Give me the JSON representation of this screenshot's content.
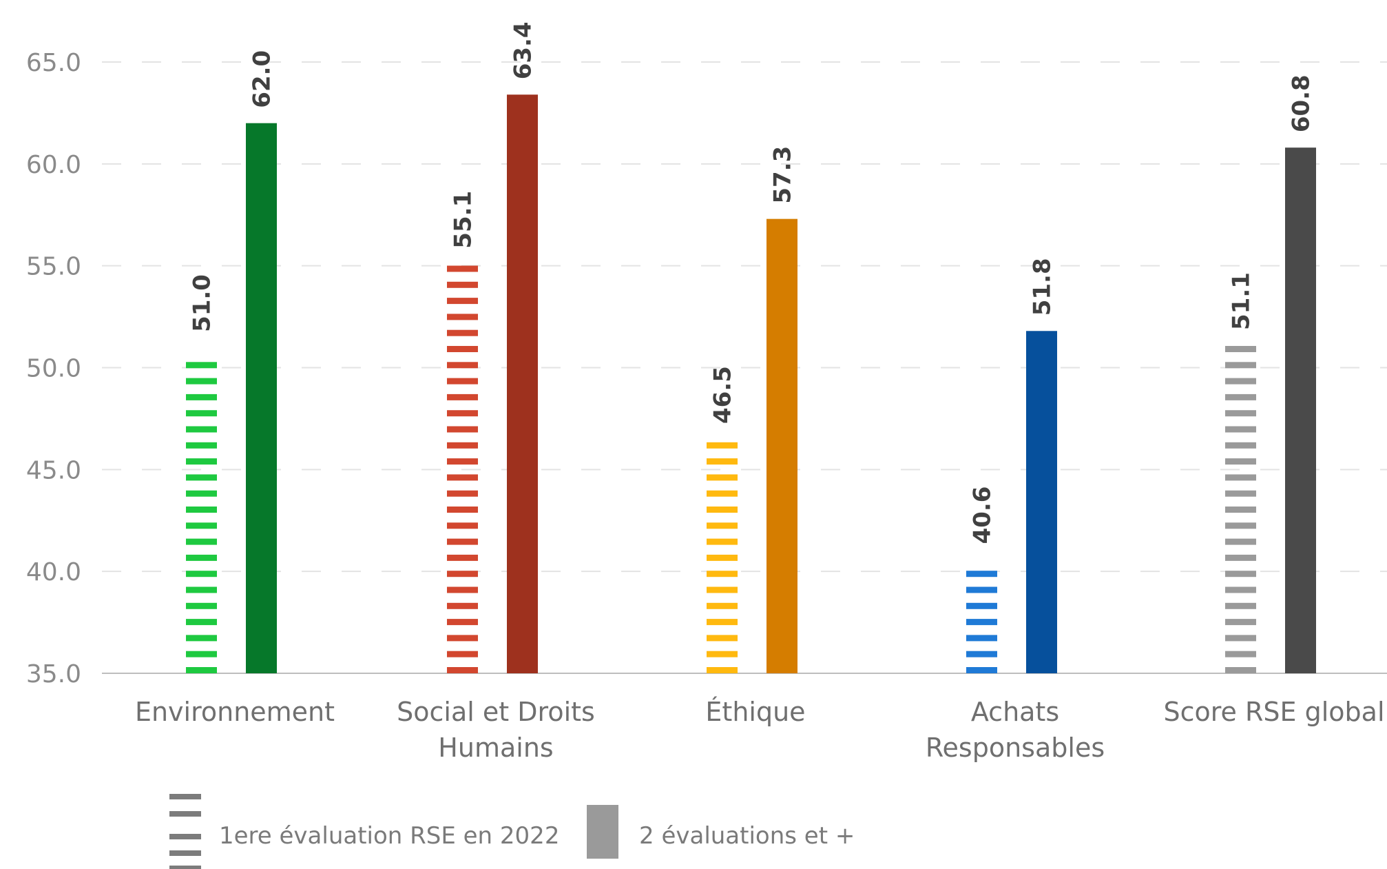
{
  "chart_data": {
    "type": "bar",
    "categories": [
      [
        "Environnement"
      ],
      [
        "Social et Droits",
        "Humains"
      ],
      [
        "Éthique"
      ],
      [
        "Achats",
        "Responsables"
      ],
      [
        "Score RSE global"
      ]
    ],
    "series": [
      {
        "name": "1ere évaluation RSE en 2022",
        "pattern": "dashed",
        "values": [
          51.0,
          55.1,
          46.5,
          40.6,
          51.1
        ],
        "labels": [
          "51.0",
          "55.1",
          "46.5",
          "40.6",
          "51.1"
        ],
        "colors": [
          "#1ec940",
          "#d2472f",
          "#ffb90f",
          "#1f7ad6",
          "#9a9a9a"
        ]
      },
      {
        "name": "2 évaluations et +",
        "pattern": "solid",
        "values": [
          62.0,
          63.4,
          57.3,
          51.8,
          60.8
        ],
        "labels": [
          "62.0",
          "63.4",
          "57.3",
          "51.8",
          "60.8"
        ],
        "colors": [
          "#06782a",
          "#9e311e",
          "#d57d00",
          "#06509c",
          "#4a4a4a"
        ]
      }
    ],
    "ylim": [
      35.0,
      65.0
    ],
    "yticks": [
      "35.0",
      "40.0",
      "45.0",
      "50.0",
      "55.0",
      "60.0",
      "65.0"
    ],
    "grid": true,
    "legend_position": "bottom-left",
    "legend_colors": [
      "#7c7c7c",
      "#9a9a9a"
    ],
    "title": "",
    "xlabel": "",
    "ylabel": ""
  }
}
